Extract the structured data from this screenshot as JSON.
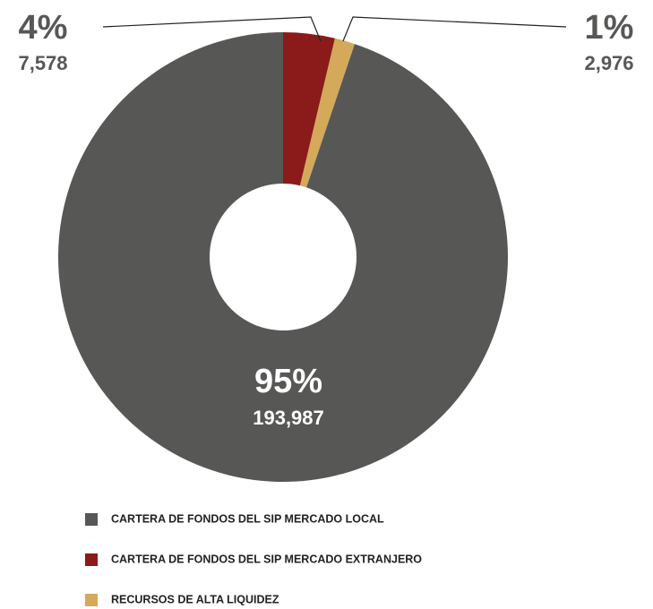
{
  "chart_data": {
    "type": "donut",
    "categories": [
      "CARTERA DE FONDOS DEL SIP MERCADO LOCAL",
      "CARTERA DE FONDOS DEL SIP MERCADO EXTRANJERO",
      "RECURSOS DE ALTA LIQUIDEZ"
    ],
    "values": [
      193987,
      7578,
      2976
    ],
    "value_labels": [
      "193,987",
      "7,578",
      "2,976"
    ],
    "percent_labels": [
      "95%",
      "4%",
      "1%"
    ],
    "colors": [
      "#575756",
      "#8b1a1a",
      "#d4a95a"
    ]
  }
}
